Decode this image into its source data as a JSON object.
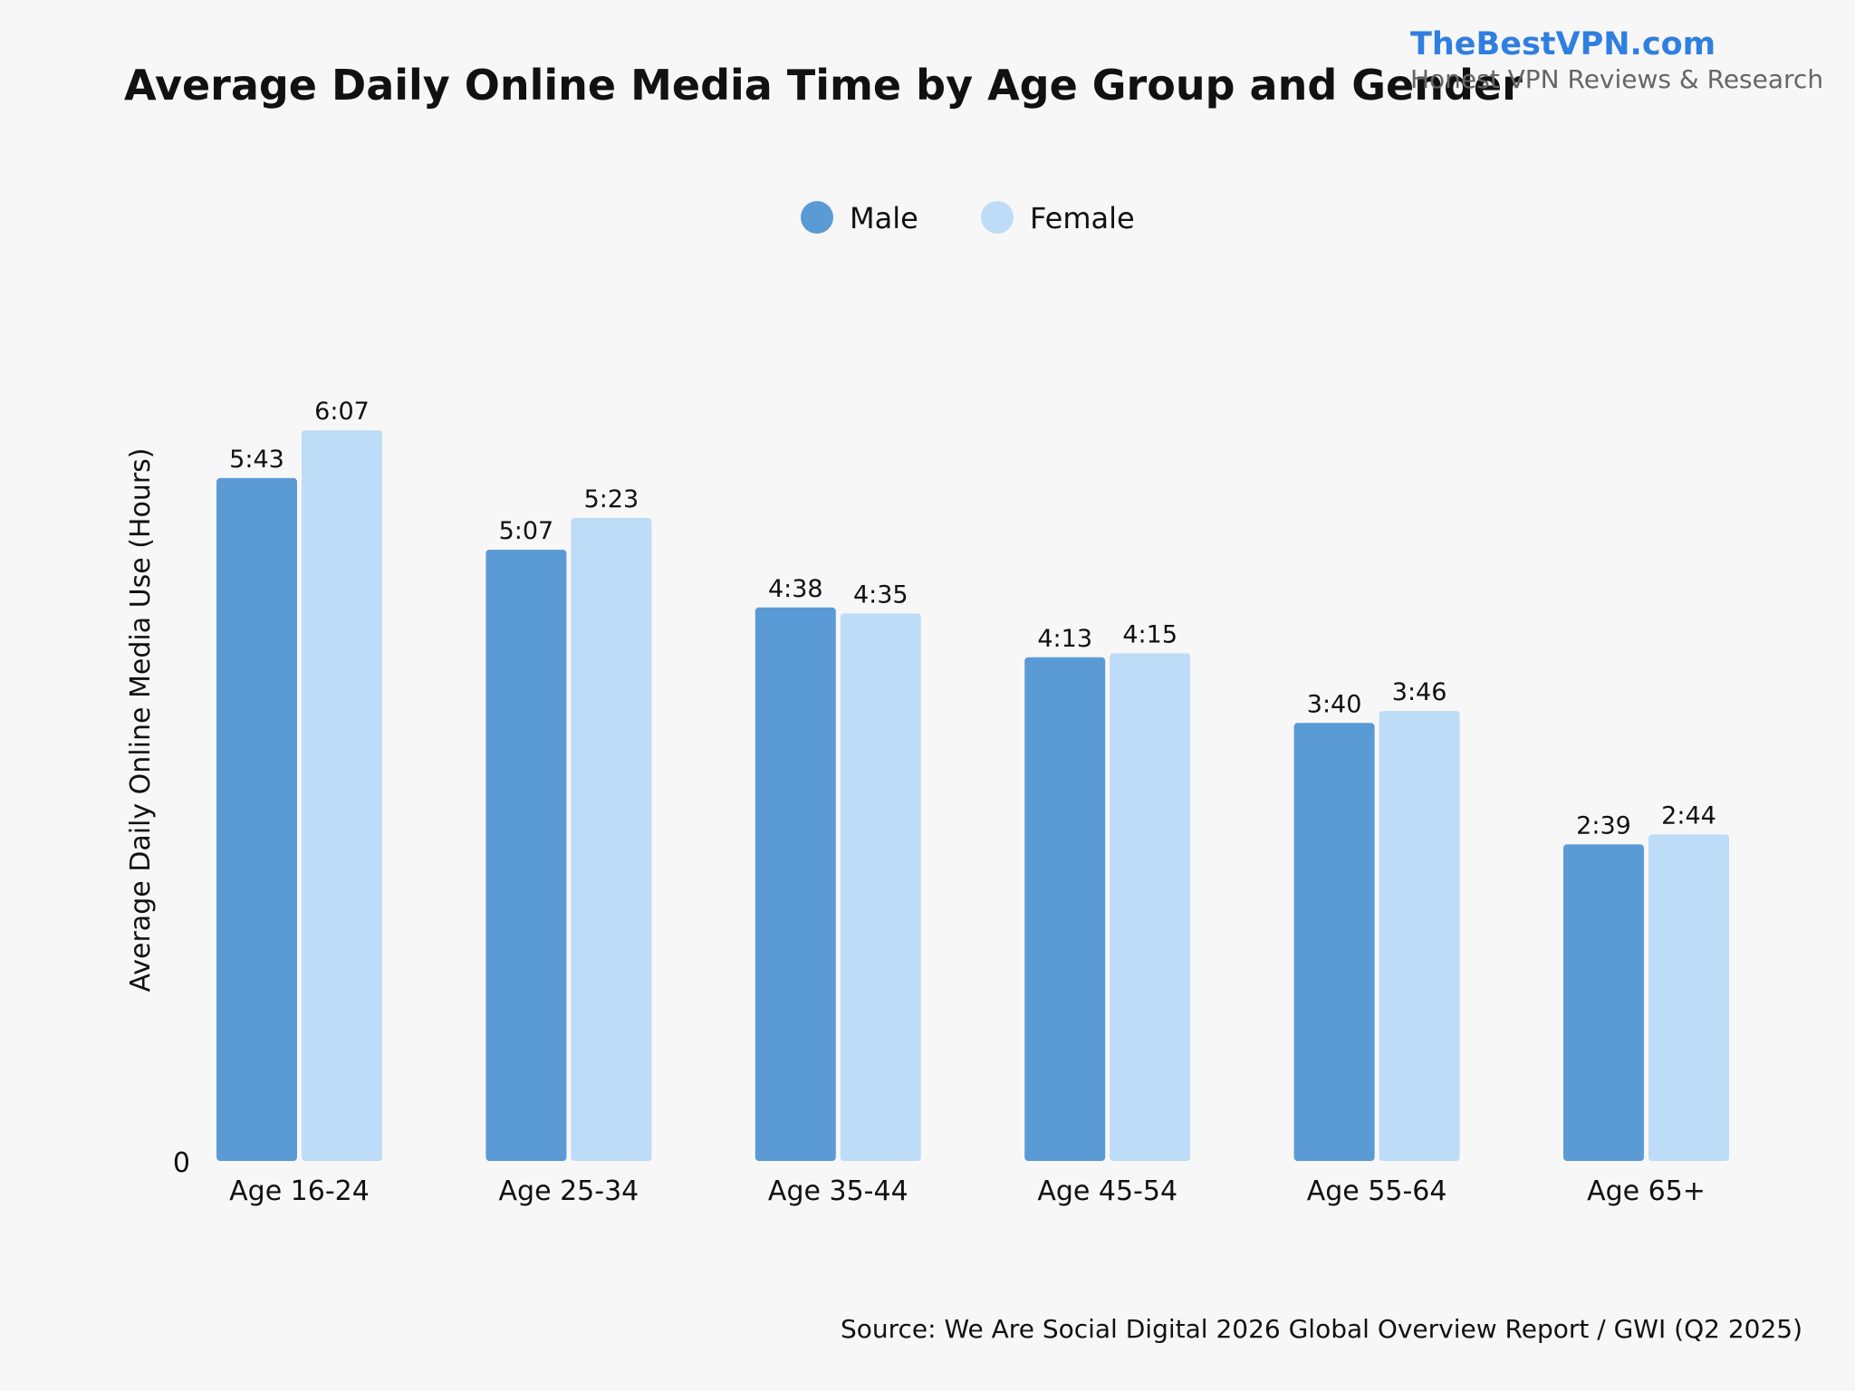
{
  "chart_data": {
    "type": "bar",
    "title": "Average Daily Online Media Time by Age Group and Gender",
    "brand": {
      "name": "TheBestVPN.com",
      "tagline": "Honest VPN Reviews & Research"
    },
    "ylabel": "Average Daily Online Media Use (Hours)",
    "xlabel": "",
    "y_ticks": [
      "0"
    ],
    "ylim": [
      0,
      6.8
    ],
    "grid": false,
    "legend_position": "top-center",
    "categories": [
      "Age 16-24",
      "Age 25-34",
      "Age 35-44",
      "Age 45-54",
      "Age 55-64",
      "Age 65+"
    ],
    "series": [
      {
        "name": "Male",
        "color": "#5b9bd5",
        "values": [
          5.7167,
          5.1167,
          4.6333,
          4.2167,
          3.6667,
          2.65
        ],
        "labels": [
          "5:43",
          "5:07",
          "4:38",
          "4:13",
          "3:40",
          "2:39"
        ]
      },
      {
        "name": "Female",
        "color": "#bddcf8",
        "values": [
          6.1167,
          5.3833,
          4.5833,
          4.25,
          3.7667,
          2.7333
        ],
        "labels": [
          "6:07",
          "5:23",
          "4:35",
          "4:15",
          "3:46",
          "2:44"
        ]
      }
    ],
    "source": "Source: We Are Social Digital 2026 Global Overview Report / GWI (Q2 2025)"
  }
}
